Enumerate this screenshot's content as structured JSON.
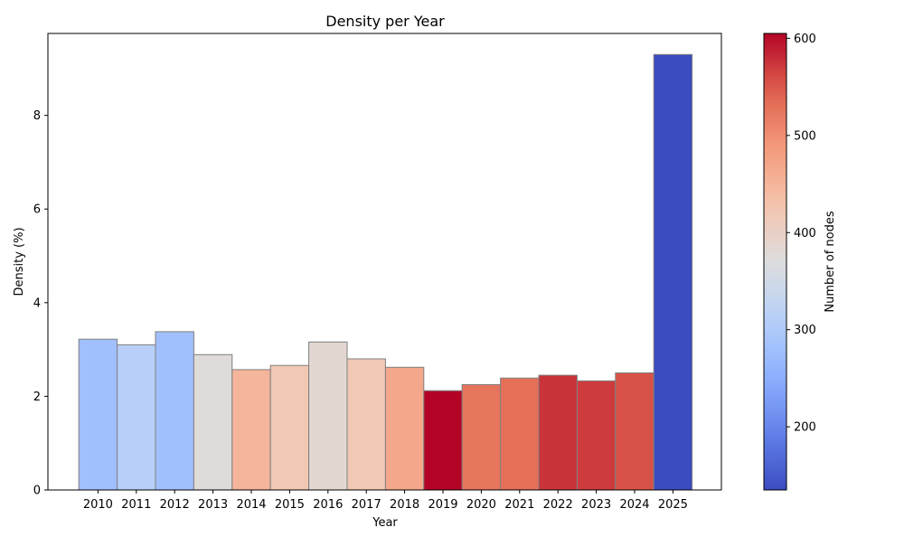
{
  "chart_data": {
    "type": "bar",
    "title": "Density per Year",
    "xlabel": "Year",
    "ylabel": "Density (%)",
    "categories": [
      "2010",
      "2011",
      "2012",
      "2013",
      "2014",
      "2015",
      "2016",
      "2017",
      "2018",
      "2019",
      "2020",
      "2021",
      "2022",
      "2023",
      "2024",
      "2025"
    ],
    "values": [
      3.22,
      3.1,
      3.38,
      2.89,
      2.57,
      2.66,
      3.16,
      2.8,
      2.62,
      2.12,
      2.25,
      2.39,
      2.45,
      2.33,
      2.5,
      9.3
    ],
    "node_counts": [
      280,
      310,
      280,
      375,
      450,
      420,
      385,
      420,
      470,
      605,
      525,
      530,
      575,
      570,
      555,
      135
    ],
    "ylim": [
      0,
      9.75
    ],
    "yticks": [
      0,
      2,
      4,
      6,
      8
    ],
    "grid": false,
    "colorbar": {
      "label": "Number of nodes",
      "range": [
        135,
        605
      ],
      "ticks": [
        200,
        300,
        400,
        500,
        600
      ],
      "colormap": "coolwarm"
    },
    "bar_edge_color": "#808080"
  }
}
